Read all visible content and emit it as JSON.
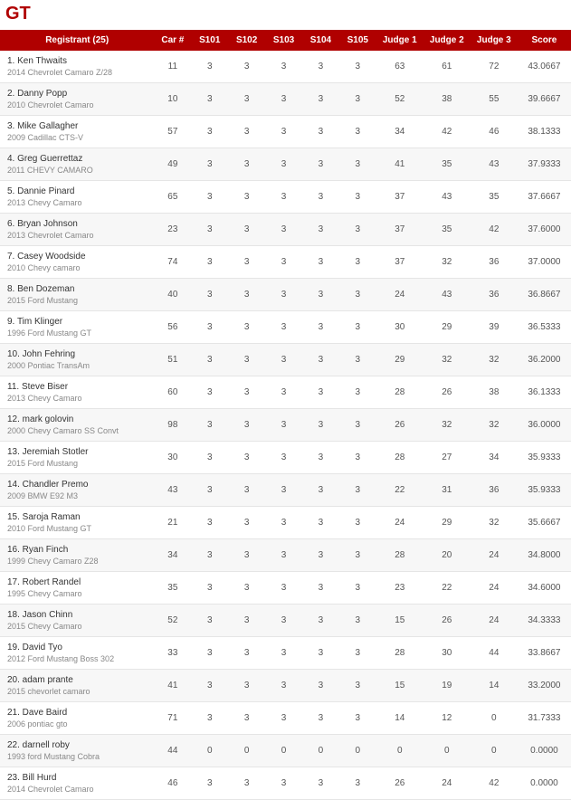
{
  "title": "GT",
  "header": {
    "registrant": "Registrant (25)",
    "car_no": "Car #",
    "s101": "S101",
    "s102": "S102",
    "s103": "S103",
    "s104": "S104",
    "s105": "S105",
    "judge1": "Judge 1",
    "judge2": "Judge 2",
    "judge3": "Judge 3",
    "score": "Score"
  },
  "rows": [
    {
      "n": "1. Ken Thwaits",
      "c": "2014 Chevrolet Camaro Z/28",
      "car": "11",
      "s1": "3",
      "s2": "3",
      "s3": "3",
      "s4": "3",
      "s5": "3",
      "j1": "63",
      "j2": "61",
      "j3": "72",
      "sc": "43.0667"
    },
    {
      "n": "2. Danny Popp",
      "c": "2010 Chevrolet Camaro",
      "car": "10",
      "s1": "3",
      "s2": "3",
      "s3": "3",
      "s4": "3",
      "s5": "3",
      "j1": "52",
      "j2": "38",
      "j3": "55",
      "sc": "39.6667"
    },
    {
      "n": "3. Mike Gallagher",
      "c": "2009 Cadillac CTS-V",
      "car": "57",
      "s1": "3",
      "s2": "3",
      "s3": "3",
      "s4": "3",
      "s5": "3",
      "j1": "34",
      "j2": "42",
      "j3": "46",
      "sc": "38.1333"
    },
    {
      "n": "4. Greg Guerrettaz",
      "c": "2011 CHEVY CAMARO",
      "car": "49",
      "s1": "3",
      "s2": "3",
      "s3": "3",
      "s4": "3",
      "s5": "3",
      "j1": "41",
      "j2": "35",
      "j3": "43",
      "sc": "37.9333"
    },
    {
      "n": "5. Dannie Pinard",
      "c": "2013 Chevy Camaro",
      "car": "65",
      "s1": "3",
      "s2": "3",
      "s3": "3",
      "s4": "3",
      "s5": "3",
      "j1": "37",
      "j2": "43",
      "j3": "35",
      "sc": "37.6667"
    },
    {
      "n": "6. Bryan Johnson",
      "c": "2013 Chevrolet Camaro",
      "car": "23",
      "s1": "3",
      "s2": "3",
      "s3": "3",
      "s4": "3",
      "s5": "3",
      "j1": "37",
      "j2": "35",
      "j3": "42",
      "sc": "37.6000"
    },
    {
      "n": "7. Casey Woodside",
      "c": "2010 Chevy camaro",
      "car": "74",
      "s1": "3",
      "s2": "3",
      "s3": "3",
      "s4": "3",
      "s5": "3",
      "j1": "37",
      "j2": "32",
      "j3": "36",
      "sc": "37.0000"
    },
    {
      "n": "8. Ben Dozeman",
      "c": "2015 Ford Mustang",
      "car": "40",
      "s1": "3",
      "s2": "3",
      "s3": "3",
      "s4": "3",
      "s5": "3",
      "j1": "24",
      "j2": "43",
      "j3": "36",
      "sc": "36.8667"
    },
    {
      "n": "9. Tim Klinger",
      "c": "1996 Ford Mustang GT",
      "car": "56",
      "s1": "3",
      "s2": "3",
      "s3": "3",
      "s4": "3",
      "s5": "3",
      "j1": "30",
      "j2": "29",
      "j3": "39",
      "sc": "36.5333"
    },
    {
      "n": "10. John Fehring",
      "c": "2000 Pontiac TransAm",
      "car": "51",
      "s1": "3",
      "s2": "3",
      "s3": "3",
      "s4": "3",
      "s5": "3",
      "j1": "29",
      "j2": "32",
      "j3": "32",
      "sc": "36.2000"
    },
    {
      "n": "11. Steve Biser",
      "c": "2013 Chevy Camaro",
      "car": "60",
      "s1": "3",
      "s2": "3",
      "s3": "3",
      "s4": "3",
      "s5": "3",
      "j1": "28",
      "j2": "26",
      "j3": "38",
      "sc": "36.1333"
    },
    {
      "n": "12. mark golovin",
      "c": "2000 Chevy Camaro SS Convt",
      "car": "98",
      "s1": "3",
      "s2": "3",
      "s3": "3",
      "s4": "3",
      "s5": "3",
      "j1": "26",
      "j2": "32",
      "j3": "32",
      "sc": "36.0000"
    },
    {
      "n": "13. Jeremiah Stotler",
      "c": "2015 Ford Mustang",
      "car": "30",
      "s1": "3",
      "s2": "3",
      "s3": "3",
      "s4": "3",
      "s5": "3",
      "j1": "28",
      "j2": "27",
      "j3": "34",
      "sc": "35.9333"
    },
    {
      "n": "14. Chandler Premo",
      "c": "2009 BMW E92 M3",
      "car": "43",
      "s1": "3",
      "s2": "3",
      "s3": "3",
      "s4": "3",
      "s5": "3",
      "j1": "22",
      "j2": "31",
      "j3": "36",
      "sc": "35.9333"
    },
    {
      "n": "15. Saroja Raman",
      "c": "2010 Ford Mustang GT",
      "car": "21",
      "s1": "3",
      "s2": "3",
      "s3": "3",
      "s4": "3",
      "s5": "3",
      "j1": "24",
      "j2": "29",
      "j3": "32",
      "sc": "35.6667"
    },
    {
      "n": "16. Ryan Finch",
      "c": "1999 Chevy Camaro Z28",
      "car": "34",
      "s1": "3",
      "s2": "3",
      "s3": "3",
      "s4": "3",
      "s5": "3",
      "j1": "28",
      "j2": "20",
      "j3": "24",
      "sc": "34.8000"
    },
    {
      "n": "17. Robert Randel",
      "c": "1995 Chevy Camaro",
      "car": "35",
      "s1": "3",
      "s2": "3",
      "s3": "3",
      "s4": "3",
      "s5": "3",
      "j1": "23",
      "j2": "22",
      "j3": "24",
      "sc": "34.6000"
    },
    {
      "n": "18. Jason Chinn",
      "c": "2015 Chevy Camaro",
      "car": "52",
      "s1": "3",
      "s2": "3",
      "s3": "3",
      "s4": "3",
      "s5": "3",
      "j1": "15",
      "j2": "26",
      "j3": "24",
      "sc": "34.3333"
    },
    {
      "n": "19. David Tyo",
      "c": "2012 Ford Mustang Boss 302",
      "car": "33",
      "s1": "3",
      "s2": "3",
      "s3": "3",
      "s4": "3",
      "s5": "3",
      "j1": "28",
      "j2": "30",
      "j3": "44",
      "sc": "33.8667"
    },
    {
      "n": "20. adam prante",
      "c": "2015 chevorlet camaro",
      "car": "41",
      "s1": "3",
      "s2": "3",
      "s3": "3",
      "s4": "3",
      "s5": "3",
      "j1": "15",
      "j2": "19",
      "j3": "14",
      "sc": "33.2000"
    },
    {
      "n": "21. Dave Baird",
      "c": "2006 pontiac gto",
      "car": "71",
      "s1": "3",
      "s2": "3",
      "s3": "3",
      "s4": "3",
      "s5": "3",
      "j1": "14",
      "j2": "12",
      "j3": "0",
      "sc": "31.7333"
    },
    {
      "n": "22. darnell roby",
      "c": "1993 ford Mustang Cobra",
      "car": "44",
      "s1": "0",
      "s2": "0",
      "s3": "0",
      "s4": "0",
      "s5": "0",
      "j1": "0",
      "j2": "0",
      "j3": "0",
      "sc": "0.0000"
    },
    {
      "n": "23. Bill Hurd",
      "c": "2014 Chevrolet Camaro",
      "car": "46",
      "s1": "3",
      "s2": "3",
      "s3": "3",
      "s4": "3",
      "s5": "3",
      "j1": "26",
      "j2": "24",
      "j3": "42",
      "sc": "0.0000"
    }
  ]
}
